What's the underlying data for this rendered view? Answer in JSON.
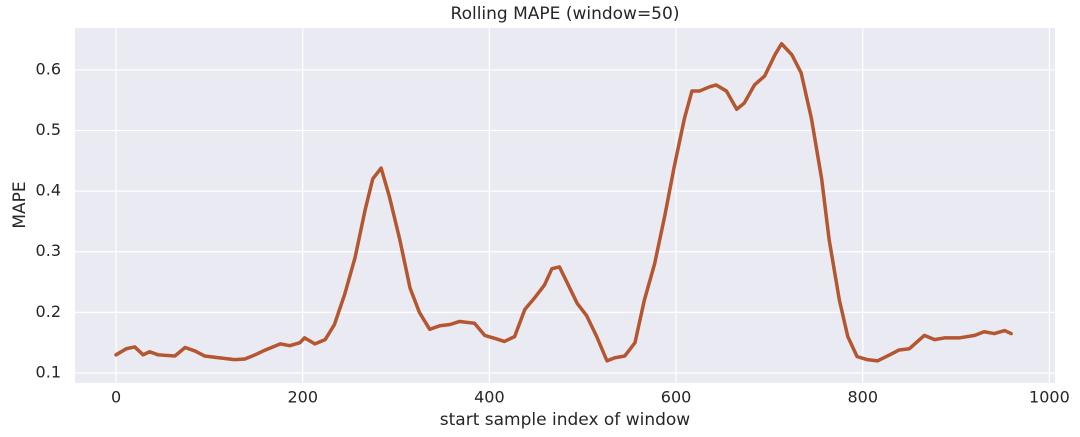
{
  "chart_data": {
    "type": "line",
    "title": "Rolling MAPE (window=50)",
    "x_label": "start sample index of window",
    "y_label": "MAPE",
    "x": [
      0,
      11,
      20,
      29,
      36,
      45,
      63,
      74,
      85,
      95,
      111,
      127,
      138,
      149,
      160,
      176,
      186,
      197,
      202,
      213,
      224,
      234,
      245,
      256,
      267,
      275,
      284,
      293,
      304,
      315,
      325,
      336,
      347,
      358,
      368,
      384,
      395,
      406,
      416,
      427,
      438,
      449,
      459,
      467,
      475,
      483,
      494,
      504,
      515,
      526,
      534,
      545,
      556,
      566,
      577,
      588,
      598,
      609,
      617,
      625,
      636,
      643,
      654,
      665,
      673,
      684,
      695,
      706,
      713,
      724,
      734,
      745,
      756,
      764,
      775,
      784,
      794,
      805,
      816,
      829,
      839,
      850,
      866,
      877,
      888,
      904,
      920,
      930,
      941,
      952,
      959
    ],
    "series": [
      {
        "name": "Rolling MAPE",
        "color": "#b4562f",
        "values": [
          0.13,
          0.14,
          0.143,
          0.13,
          0.135,
          0.13,
          0.128,
          0.142,
          0.136,
          0.128,
          0.125,
          0.122,
          0.123,
          0.13,
          0.138,
          0.148,
          0.145,
          0.15,
          0.158,
          0.148,
          0.155,
          0.18,
          0.23,
          0.29,
          0.37,
          0.42,
          0.438,
          0.39,
          0.32,
          0.24,
          0.2,
          0.172,
          0.178,
          0.18,
          0.185,
          0.182,
          0.162,
          0.157,
          0.152,
          0.16,
          0.205,
          0.225,
          0.245,
          0.272,
          0.275,
          0.25,
          0.215,
          0.195,
          0.16,
          0.12,
          0.125,
          0.128,
          0.15,
          0.22,
          0.28,
          0.36,
          0.44,
          0.52,
          0.565,
          0.565,
          0.572,
          0.575,
          0.565,
          0.535,
          0.545,
          0.575,
          0.59,
          0.625,
          0.643,
          0.625,
          0.595,
          0.52,
          0.42,
          0.32,
          0.22,
          0.16,
          0.127,
          0.122,
          0.12,
          0.13,
          0.138,
          0.14,
          0.162,
          0.155,
          0.158,
          0.158,
          0.162,
          0.168,
          0.165,
          0.17,
          0.165
        ]
      }
    ],
    "xlim": [
      -44,
      1006
    ],
    "ylim": [
      0.0835,
      0.669
    ],
    "xticks": [
      0,
      200,
      400,
      600,
      800,
      1000
    ],
    "yticks": [
      0.1,
      0.2,
      0.3,
      0.4,
      0.5,
      0.6
    ],
    "grid": true
  }
}
